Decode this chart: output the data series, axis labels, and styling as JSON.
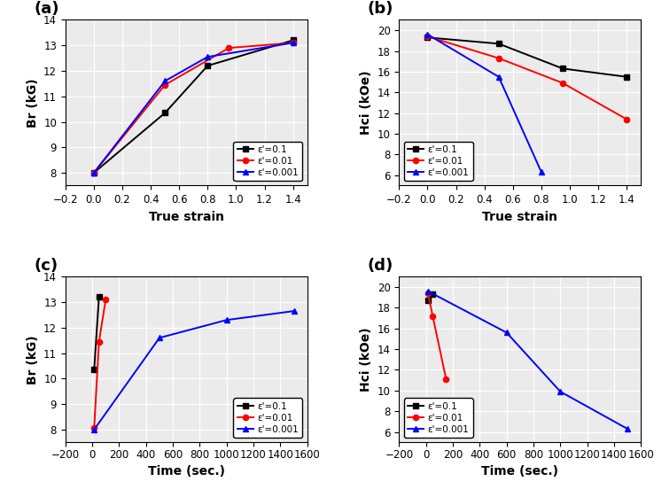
{
  "panel_a": {
    "title": "(a)",
    "xlabel": "True strain",
    "ylabel": "Br (kG)",
    "ylim": [
      7.5,
      14
    ],
    "xlim": [
      -0.2,
      1.5
    ],
    "yticks": [
      8,
      9,
      10,
      11,
      12,
      13,
      14
    ],
    "xticks": [
      -0.2,
      0.0,
      0.2,
      0.4,
      0.6,
      0.8,
      1.0,
      1.2,
      1.4
    ],
    "legend_loc": "lower right",
    "series": [
      {
        "label": "ε'=0.1",
        "x": [
          0.0,
          0.5,
          0.8,
          1.4
        ],
        "y": [
          8.0,
          10.35,
          12.2,
          13.2
        ],
        "color": "black",
        "marker": "s"
      },
      {
        "label": "ε'=0.01",
        "x": [
          0.0,
          0.5,
          0.95,
          1.4
        ],
        "y": [
          8.0,
          11.45,
          12.9,
          13.1
        ],
        "color": "red",
        "marker": "o"
      },
      {
        "label": "ε'=0.001",
        "x": [
          0.0,
          0.5,
          0.8,
          1.4
        ],
        "y": [
          8.0,
          11.6,
          12.55,
          13.1
        ],
        "color": "blue",
        "marker": "^"
      }
    ]
  },
  "panel_b": {
    "title": "(b)",
    "xlabel": "True strain",
    "ylabel": "Hci (kOe)",
    "ylim": [
      5,
      21
    ],
    "xlim": [
      -0.2,
      1.5
    ],
    "yticks": [
      6,
      8,
      10,
      12,
      14,
      16,
      18,
      20
    ],
    "xticks": [
      -0.2,
      0.0,
      0.2,
      0.4,
      0.6,
      0.8,
      1.0,
      1.2,
      1.4
    ],
    "legend_loc": "lower left",
    "series": [
      {
        "label": "ε'=0.1",
        "x": [
          0.0,
          0.5,
          0.95,
          1.4
        ],
        "y": [
          19.3,
          18.7,
          16.3,
          15.5
        ],
        "color": "black",
        "marker": "s"
      },
      {
        "label": "ε'=0.01",
        "x": [
          0.0,
          0.5,
          0.95,
          1.4
        ],
        "y": [
          19.4,
          17.3,
          14.9,
          11.4
        ],
        "color": "red",
        "marker": "o"
      },
      {
        "label": "ε'=0.001",
        "x": [
          0.0,
          0.5,
          0.8
        ],
        "y": [
          19.6,
          15.5,
          6.3
        ],
        "color": "blue",
        "marker": "^"
      }
    ]
  },
  "panel_c": {
    "title": "(c)",
    "xlabel": "Time (sec.)",
    "ylabel": "Br (kG)",
    "ylim": [
      7.5,
      14
    ],
    "xlim": [
      -200,
      1600
    ],
    "yticks": [
      8,
      9,
      10,
      11,
      12,
      13,
      14
    ],
    "xticks": [
      -200,
      0,
      200,
      400,
      600,
      800,
      1000,
      1200,
      1400,
      1600
    ],
    "legend_loc": "lower right",
    "series": [
      {
        "label": "ε'=0.1",
        "x": [
          14,
          50
        ],
        "y": [
          10.35,
          13.2
        ],
        "color": "black",
        "marker": "s"
      },
      {
        "label": "ε'=0.01",
        "x": [
          14,
          50,
          100
        ],
        "y": [
          8.05,
          11.45,
          13.1
        ],
        "color": "red",
        "marker": "o"
      },
      {
        "label": "ε'=0.001",
        "x": [
          14,
          500,
          1000,
          1500
        ],
        "y": [
          8.0,
          11.6,
          12.3,
          12.65
        ],
        "color": "blue",
        "marker": "^"
      }
    ]
  },
  "panel_d": {
    "title": "(d)",
    "xlabel": "Time (sec.)",
    "ylabel": "Hci (kOe)",
    "ylim": [
      5,
      21
    ],
    "xlim": [
      -200,
      1600
    ],
    "yticks": [
      6,
      8,
      10,
      12,
      14,
      16,
      18,
      20
    ],
    "xticks": [
      -200,
      0,
      200,
      400,
      600,
      800,
      1000,
      1200,
      1400,
      1600
    ],
    "legend_loc": "lower left",
    "series": [
      {
        "label": "ε'=0.1",
        "x": [
          14,
          50
        ],
        "y": [
          18.7,
          19.3
        ],
        "color": "black",
        "marker": "s"
      },
      {
        "label": "ε'=0.01",
        "x": [
          14,
          50,
          150
        ],
        "y": [
          19.4,
          17.2,
          11.1
        ],
        "color": "red",
        "marker": "o"
      },
      {
        "label": "ε'=0.001",
        "x": [
          14,
          600,
          1000,
          1500
        ],
        "y": [
          19.6,
          15.6,
          9.9,
          6.3
        ],
        "color": "blue",
        "marker": "^"
      }
    ]
  },
  "background_color": "#ebebeb",
  "grid_color": "#ffffff",
  "legend_fontsize": 7.5,
  "axis_label_fontsize": 10,
  "tick_fontsize": 8.5,
  "panel_label_fontsize": 13
}
